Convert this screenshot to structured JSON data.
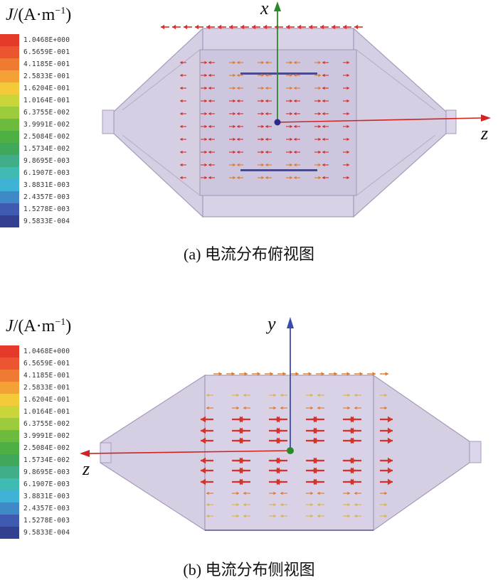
{
  "legend": {
    "symbol": "J",
    "unit": "/(A·m",
    "unit_exp": "−1",
    "unit_close": ")",
    "labels": [
      "1.0468E+000",
      "6.5659E-001",
      "4.1185E-001",
      "2.5833E-001",
      "1.6204E-001",
      "1.0164E-001",
      "6.3755E-002",
      "3.9991E-002",
      "2.5084E-002",
      "1.5734E-002",
      "9.8695E-003",
      "6.1907E-003",
      "3.8831E-003",
      "2.4357E-003",
      "1.5278E-003",
      "9.5833E-004"
    ],
    "colors": [
      "#e53a2a",
      "#ea5530",
      "#ef7a32",
      "#f4a235",
      "#f3cb3a",
      "#c9d53a",
      "#9ccc3c",
      "#6cbb3c",
      "#4daf44",
      "#3fa85a",
      "#3fae89",
      "#3fbbb3",
      "#3fb3d6",
      "#3f8ac6",
      "#3f5ab0",
      "#33408f"
    ]
  },
  "panel_a": {
    "caption": "(a) 电流分布俯视图",
    "axis_vertical": "x",
    "axis_horizontal": "z"
  },
  "panel_b": {
    "caption": "(b) 电流分布侧视图",
    "axis_vertical": "y",
    "axis_horizontal": "z"
  },
  "colors": {
    "body_fill": "#d6cfe4",
    "body_stroke": "#a49cb8",
    "arrow_red": "#d4322a",
    "arrow_orange": "#e07a2e",
    "arrow_yellow": "#d9b34a",
    "axis_red": "#d22222",
    "axis_green": "#2a8a2a",
    "axis_blue": "#3a4bb0"
  }
}
